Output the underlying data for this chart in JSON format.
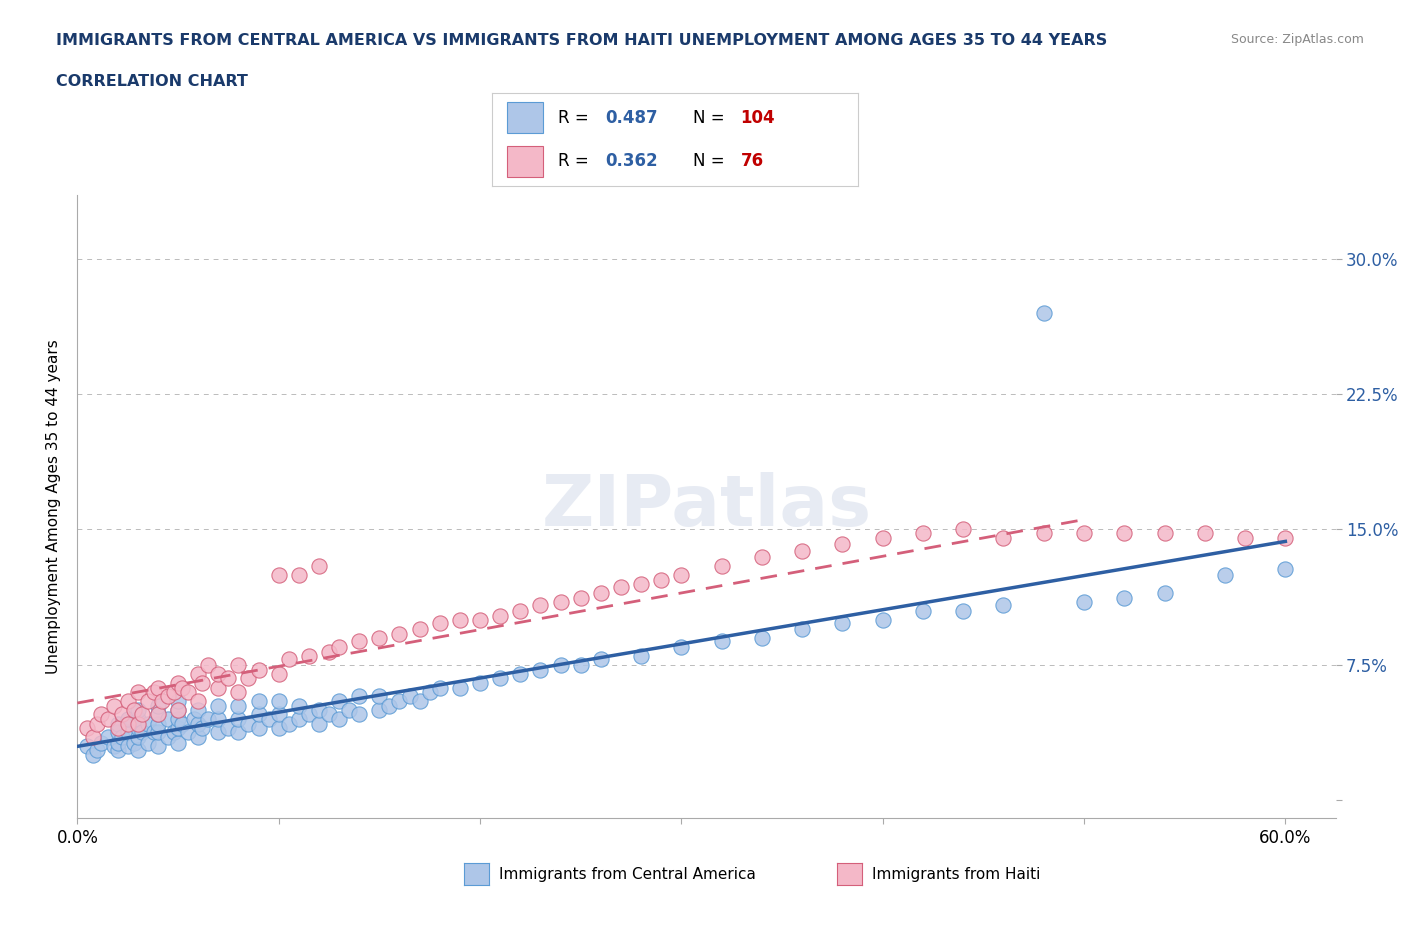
{
  "title_line1": "IMMIGRANTS FROM CENTRAL AMERICA VS IMMIGRANTS FROM HAITI UNEMPLOYMENT AMONG AGES 35 TO 44 YEARS",
  "title_line2": "CORRELATION CHART",
  "source": "Source: ZipAtlas.com",
  "ylabel": "Unemployment Among Ages 35 to 44 years",
  "xlim": [
    0.0,
    0.625
  ],
  "ylim": [
    -0.01,
    0.335
  ],
  "xticks": [
    0.0,
    0.1,
    0.2,
    0.3,
    0.4,
    0.5,
    0.6
  ],
  "xticklabels": [
    "0.0%",
    "",
    "",
    "",
    "",
    "",
    "60.0%"
  ],
  "yticks": [
    0.0,
    0.075,
    0.15,
    0.225,
    0.3
  ],
  "yticklabels": [
    "",
    "7.5%",
    "15.0%",
    "22.5%",
    "30.0%"
  ],
  "series_ca": {
    "label": "Immigrants from Central America",
    "color": "#aec6e8",
    "border_color": "#5b9bd5",
    "R": 0.487,
    "N": 104,
    "trend_color": "#2e5fa3",
    "trend_style": "solid"
  },
  "series_haiti": {
    "label": "Immigrants from Haiti",
    "color": "#f4b8c8",
    "border_color": "#d45f7a",
    "R": 0.362,
    "N": 76,
    "trend_color": "#d45f7a",
    "trend_style": "dashed"
  },
  "legend_R_color": "#2e5fa3",
  "legend_N_color": "#c00000",
  "watermark_text": "ZIPatlas",
  "grid_color": "#bbbbbb",
  "background_color": "#ffffff",
  "title_color": "#1a3a6b",
  "ytick_color": "#2e5fa3",
  "ca_x": [
    0.005,
    0.008,
    0.01,
    0.012,
    0.015,
    0.018,
    0.02,
    0.02,
    0.02,
    0.02,
    0.022,
    0.025,
    0.025,
    0.025,
    0.028,
    0.03,
    0.03,
    0.03,
    0.03,
    0.03,
    0.032,
    0.035,
    0.035,
    0.038,
    0.04,
    0.04,
    0.04,
    0.04,
    0.04,
    0.045,
    0.045,
    0.048,
    0.05,
    0.05,
    0.05,
    0.05,
    0.05,
    0.052,
    0.055,
    0.058,
    0.06,
    0.06,
    0.06,
    0.062,
    0.065,
    0.07,
    0.07,
    0.07,
    0.075,
    0.08,
    0.08,
    0.08,
    0.085,
    0.09,
    0.09,
    0.09,
    0.095,
    0.1,
    0.1,
    0.1,
    0.105,
    0.11,
    0.11,
    0.115,
    0.12,
    0.12,
    0.125,
    0.13,
    0.13,
    0.135,
    0.14,
    0.14,
    0.15,
    0.15,
    0.155,
    0.16,
    0.165,
    0.17,
    0.175,
    0.18,
    0.19,
    0.2,
    0.21,
    0.22,
    0.23,
    0.24,
    0.25,
    0.26,
    0.28,
    0.3,
    0.32,
    0.34,
    0.36,
    0.38,
    0.4,
    0.42,
    0.44,
    0.46,
    0.48,
    0.5,
    0.52,
    0.54,
    0.57,
    0.6
  ],
  "ca_y": [
    0.03,
    0.025,
    0.028,
    0.032,
    0.035,
    0.03,
    0.028,
    0.032,
    0.038,
    0.042,
    0.035,
    0.03,
    0.038,
    0.045,
    0.032,
    0.028,
    0.035,
    0.04,
    0.045,
    0.05,
    0.038,
    0.032,
    0.042,
    0.038,
    0.03,
    0.038,
    0.042,
    0.048,
    0.052,
    0.035,
    0.045,
    0.038,
    0.032,
    0.04,
    0.045,
    0.05,
    0.055,
    0.042,
    0.038,
    0.045,
    0.035,
    0.042,
    0.05,
    0.04,
    0.045,
    0.038,
    0.045,
    0.052,
    0.04,
    0.038,
    0.045,
    0.052,
    0.042,
    0.04,
    0.048,
    0.055,
    0.045,
    0.04,
    0.048,
    0.055,
    0.042,
    0.045,
    0.052,
    0.048,
    0.042,
    0.05,
    0.048,
    0.045,
    0.055,
    0.05,
    0.048,
    0.058,
    0.05,
    0.058,
    0.052,
    0.055,
    0.058,
    0.055,
    0.06,
    0.062,
    0.062,
    0.065,
    0.068,
    0.07,
    0.072,
    0.075,
    0.075,
    0.078,
    0.08,
    0.085,
    0.088,
    0.09,
    0.095,
    0.098,
    0.1,
    0.105,
    0.105,
    0.108,
    0.27,
    0.11,
    0.112,
    0.115,
    0.125,
    0.128
  ],
  "haiti_x": [
    0.005,
    0.008,
    0.01,
    0.012,
    0.015,
    0.018,
    0.02,
    0.022,
    0.025,
    0.025,
    0.028,
    0.03,
    0.03,
    0.032,
    0.035,
    0.038,
    0.04,
    0.04,
    0.042,
    0.045,
    0.048,
    0.05,
    0.05,
    0.052,
    0.055,
    0.06,
    0.06,
    0.062,
    0.065,
    0.07,
    0.07,
    0.075,
    0.08,
    0.08,
    0.085,
    0.09,
    0.1,
    0.1,
    0.105,
    0.11,
    0.115,
    0.12,
    0.125,
    0.13,
    0.14,
    0.15,
    0.16,
    0.17,
    0.18,
    0.19,
    0.2,
    0.21,
    0.22,
    0.23,
    0.24,
    0.25,
    0.26,
    0.27,
    0.28,
    0.29,
    0.3,
    0.32,
    0.34,
    0.36,
    0.38,
    0.4,
    0.42,
    0.44,
    0.46,
    0.48,
    0.5,
    0.52,
    0.54,
    0.56,
    0.58,
    0.6
  ],
  "haiti_y": [
    0.04,
    0.035,
    0.042,
    0.048,
    0.045,
    0.052,
    0.04,
    0.048,
    0.042,
    0.055,
    0.05,
    0.042,
    0.06,
    0.048,
    0.055,
    0.06,
    0.048,
    0.062,
    0.055,
    0.058,
    0.06,
    0.05,
    0.065,
    0.062,
    0.06,
    0.055,
    0.07,
    0.065,
    0.075,
    0.062,
    0.07,
    0.068,
    0.06,
    0.075,
    0.068,
    0.072,
    0.07,
    0.125,
    0.078,
    0.125,
    0.08,
    0.13,
    0.082,
    0.085,
    0.088,
    0.09,
    0.092,
    0.095,
    0.098,
    0.1,
    0.1,
    0.102,
    0.105,
    0.108,
    0.11,
    0.112,
    0.115,
    0.118,
    0.12,
    0.122,
    0.125,
    0.13,
    0.135,
    0.138,
    0.142,
    0.145,
    0.148,
    0.15,
    0.145,
    0.148,
    0.148,
    0.148,
    0.148,
    0.148,
    0.145,
    0.145
  ]
}
